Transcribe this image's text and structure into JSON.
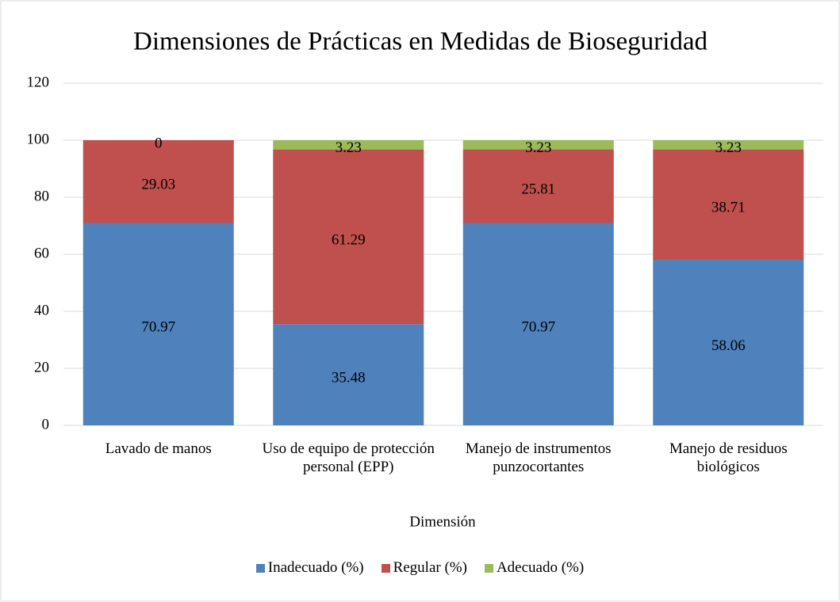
{
  "chart_data": {
    "type": "stacked_bar",
    "title": "Dimensiones de Prácticas en Medidas de Bioseguridad",
    "x_label": "Dimensión",
    "categories": [
      "Lavado de manos",
      "Uso de equipo de protección personal (EPP)",
      "Manejo de instrumentos punzocortantes",
      "Manejo de residuos biológicos"
    ],
    "series": [
      {
        "name": "Inadecuado (%)",
        "color": "#4f81bd",
        "values": [
          70.97,
          35.48,
          70.97,
          58.06
        ]
      },
      {
        "name": "Regular (%)",
        "color": "#c0504d",
        "values": [
          29.03,
          61.29,
          25.81,
          38.71
        ]
      },
      {
        "name": "Adecuado (%)",
        "color": "#9bbb59",
        "values": [
          0,
          3.23,
          3.23,
          3.23
        ]
      }
    ],
    "ylim": [
      0,
      120
    ],
    "yticks": [
      0,
      20,
      40,
      60,
      80,
      100,
      120
    ],
    "grid": true,
    "legend": "bottom"
  }
}
